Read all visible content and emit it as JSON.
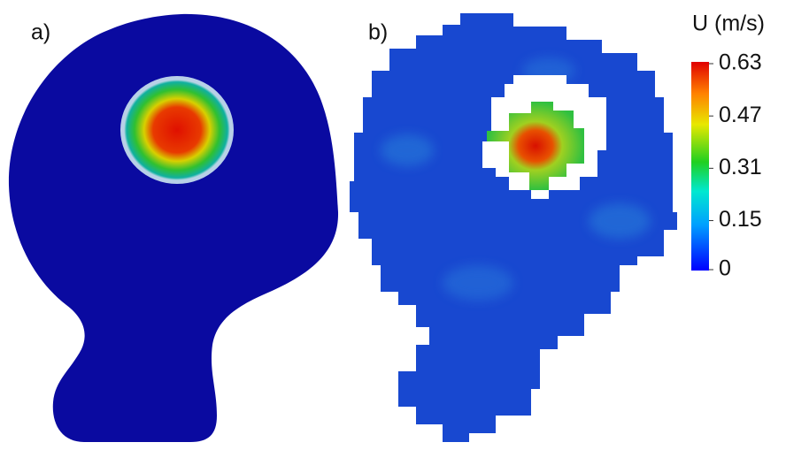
{
  "panels": [
    {
      "label": "a)"
    },
    {
      "label": "b)"
    }
  ],
  "colorbar": {
    "title": "U (m/s)",
    "ticks": [
      0.63,
      0.47,
      0.31,
      0.15,
      0
    ]
  }
}
